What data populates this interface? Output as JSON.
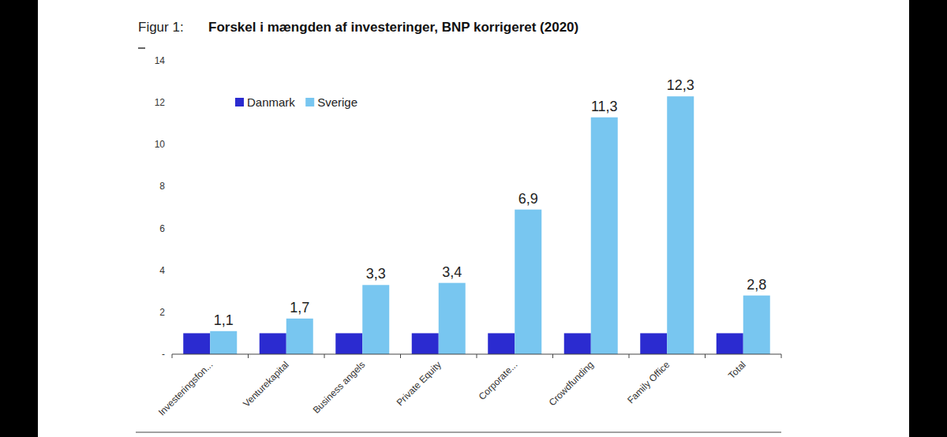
{
  "chart_data": {
    "type": "bar",
    "figure_label": "Figur 1:",
    "title": "Forskel i mængden af investeringer, BNP korrigeret (2020)",
    "categories": [
      "Investeringsfon...",
      "Venturekapital",
      "Business angels",
      "Private Equity",
      "Corporate...",
      "Crowdfunding",
      "Family Office",
      "Total"
    ],
    "series": [
      {
        "name": "Danmark",
        "color": "#2b2bd0",
        "values": [
          1,
          1,
          1,
          1,
          1,
          1,
          1,
          1
        ],
        "data_labels": false
      },
      {
        "name": "Sverige",
        "color": "#78c6f0",
        "values": [
          1.1,
          1.7,
          3.3,
          3.4,
          6.9,
          11.3,
          12.3,
          2.8
        ],
        "value_labels": [
          "1,1",
          "1,7",
          "3,3",
          "3,4",
          "6,9",
          "11,3",
          "12,3",
          "2,8"
        ],
        "data_labels": true
      }
    ],
    "ylim": [
      0,
      14
    ],
    "yticks": [
      {
        "value": 0,
        "label": "-"
      },
      2,
      4,
      6,
      8,
      10,
      12,
      14
    ],
    "grid": false,
    "legend": "top-left"
  }
}
